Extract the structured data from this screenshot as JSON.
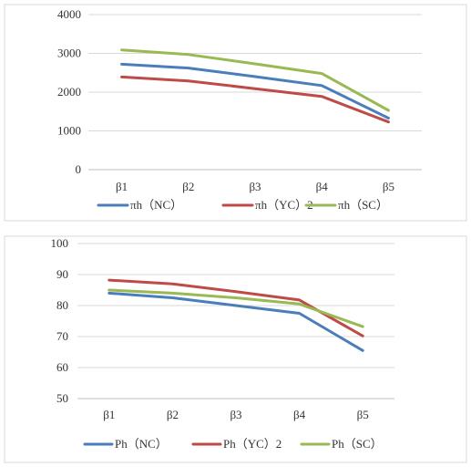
{
  "chart_data": [
    {
      "type": "line",
      "categories": [
        "β1",
        "β2",
        "β3",
        "β4",
        "β5"
      ],
      "ylim": [
        0,
        4000
      ],
      "yticks": [
        0,
        1000,
        2000,
        3000,
        4000
      ],
      "grid": true,
      "legend_position": "bottom",
      "series": [
        {
          "name": "πh（NC）",
          "color": "#4a7ebb",
          "values": [
            2720,
            2620,
            2400,
            2170,
            1330
          ]
        },
        {
          "name": "πh（YC）2",
          "color": "#be4b48",
          "values": [
            2390,
            2290,
            2090,
            1890,
            1230
          ]
        },
        {
          "name": "πh（SC）",
          "color": "#98b954",
          "values": [
            3090,
            2970,
            2730,
            2480,
            1530
          ]
        }
      ]
    },
    {
      "type": "line",
      "categories": [
        "β1",
        "β2",
        "β3",
        "β4",
        "β5"
      ],
      "ylim": [
        50,
        100
      ],
      "yticks": [
        50,
        60,
        70,
        80,
        90,
        100
      ],
      "grid": true,
      "legend_position": "bottom",
      "series": [
        {
          "name": "Ph（NC）",
          "color": "#4a7ebb",
          "values": [
            84,
            82.5,
            80,
            77.5,
            65.5
          ]
        },
        {
          "name": "Ph（YC）2",
          "color": "#be4b48",
          "values": [
            88.2,
            87,
            84.5,
            81.8,
            70.2
          ]
        },
        {
          "name": "Ph（SC）",
          "color": "#98b954",
          "values": [
            85,
            84,
            82.5,
            80.5,
            73.2
          ]
        }
      ]
    }
  ]
}
